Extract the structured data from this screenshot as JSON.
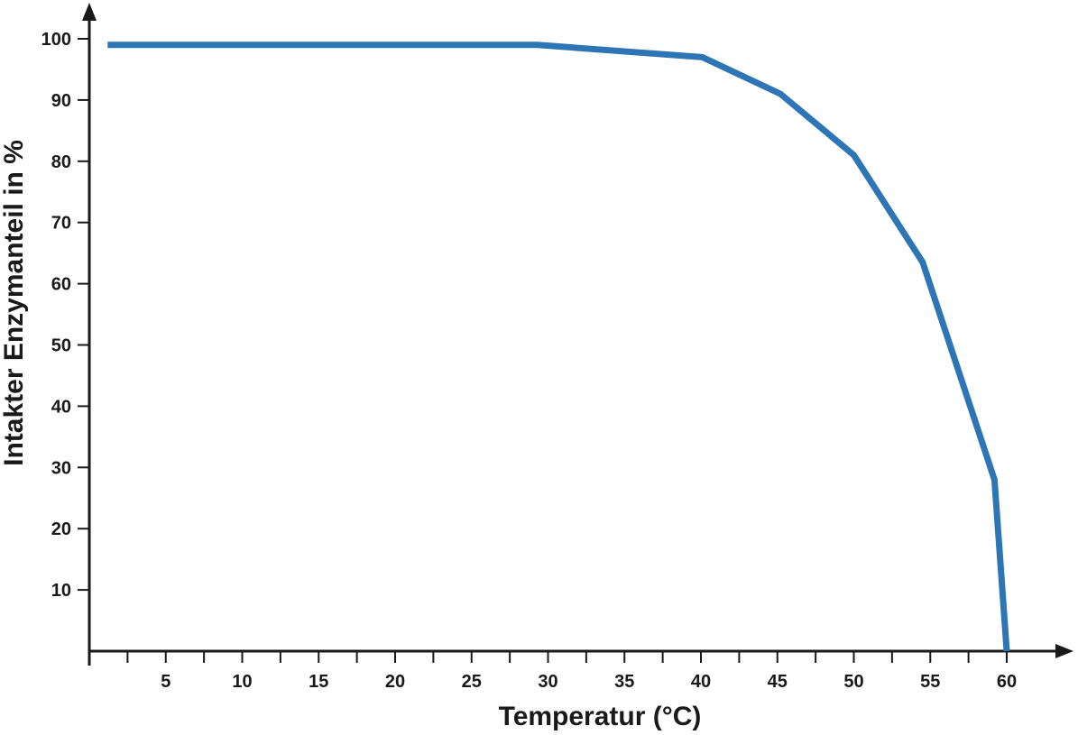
{
  "chart_data": {
    "type": "line",
    "title": "",
    "xlabel": "Temperatur (°C)",
    "ylabel": "Intakter Enzymanteil in %",
    "xlim": [
      0,
      62.5
    ],
    "ylim": [
      0,
      100
    ],
    "x_ticks": [
      5,
      10,
      15,
      20,
      25,
      30,
      35,
      40,
      45,
      50,
      55,
      60
    ],
    "x_tick_labels": [
      "5",
      "10",
      "15",
      "20",
      "25",
      "30",
      "35",
      "40",
      "45",
      "50",
      "55",
      "60"
    ],
    "y_ticks": [
      10,
      20,
      30,
      40,
      50,
      60,
      70,
      80,
      90,
      100
    ],
    "y_tick_labels": [
      "10",
      "20",
      "30",
      "40",
      "50",
      "60",
      "70",
      "80",
      "90",
      "100"
    ],
    "grid": false,
    "legend": "none",
    "series": [
      {
        "color": "#2e75b6",
        "x": [
          1.2,
          29.3,
          40.1,
          45.2,
          50,
          54.5,
          59.2,
          60
        ],
        "y": [
          99,
          99,
          97,
          91,
          81,
          63.5,
          28,
          0
        ]
      }
    ]
  }
}
